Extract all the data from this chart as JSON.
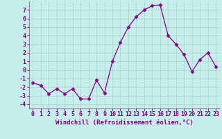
{
  "x": [
    0,
    1,
    2,
    3,
    4,
    5,
    6,
    7,
    8,
    9,
    10,
    11,
    12,
    13,
    14,
    15,
    16,
    17,
    18,
    19,
    20,
    21,
    22,
    23
  ],
  "y": [
    -1.5,
    -1.8,
    -2.8,
    -2.2,
    -2.8,
    -2.2,
    -3.4,
    -3.4,
    -1.2,
    -2.7,
    1.0,
    3.2,
    5.0,
    6.2,
    7.0,
    7.5,
    7.6,
    4.0,
    3.0,
    1.8,
    -0.2,
    1.2,
    2.0,
    0.4
  ],
  "line_color": "#800080",
  "marker": "D",
  "marker_size": 2.5,
  "bg_color": "#c8eded",
  "grid_color": "#aacccc",
  "xlabel": "Windchill (Refroidissement éolien,°C)",
  "xlabel_fontsize": 6.5,
  "tick_fontsize": 6,
  "label_color": "#800080",
  "ylim": [
    -4.5,
    8.0
  ],
  "xlim": [
    -0.5,
    23.5
  ],
  "yticks": [
    -4,
    -3,
    -2,
    -1,
    0,
    1,
    2,
    3,
    4,
    5,
    6,
    7
  ],
  "xticks": [
    0,
    1,
    2,
    3,
    4,
    5,
    6,
    7,
    8,
    9,
    10,
    11,
    12,
    13,
    14,
    15,
    16,
    17,
    18,
    19,
    20,
    21,
    22,
    23
  ]
}
